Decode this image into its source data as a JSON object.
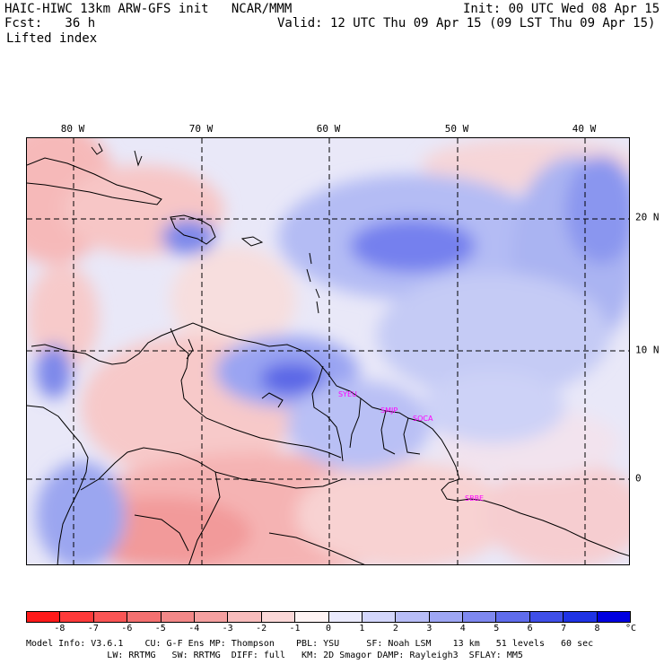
{
  "header": {
    "title": "HAIC-HIWC 13km ARW-GFS init   NCAR/MMM",
    "init": "Init: 00 UTC Wed 08 Apr 15",
    "fcst": "Fcst:   36 h",
    "valid": "Valid: 12 UTC Thu 09 Apr 15 (09 LST Thu 09 Apr 15)",
    "field": "Lifted index"
  },
  "map": {
    "lon_labels": [
      "80 W",
      "70 W",
      "60 W",
      "50 W",
      "40 W"
    ],
    "lat_labels": [
      "20 N",
      "10 N",
      "0"
    ],
    "stations": [
      "SYEU",
      "SMJP",
      "SOCA",
      "SBBE"
    ]
  },
  "colorbar": {
    "labels": [
      "-8",
      "-7",
      "-6",
      "-5",
      "-4",
      "-3",
      "-2",
      "-1",
      "0",
      "1",
      "2",
      "3",
      "4",
      "5",
      "6",
      "7",
      "8",
      "°C"
    ],
    "colors": [
      "#ff1a1a",
      "#ff3a3a",
      "#fa5555",
      "#f47070",
      "#f38888",
      "#f5a0a0",
      "#f8bcbc",
      "#fbd8d8",
      "#fff4f4",
      "#eaeafd",
      "#d3d6fb",
      "#b8bdf7",
      "#9ea6f4",
      "#7e88f0",
      "#5f6cec",
      "#3f4fe8",
      "#1f33e5",
      "#0000e0"
    ]
  },
  "footer": {
    "line1": "Model Info: V3.6.1    CU: G-F Ens MP: Thompson    PBL: YSU     SF: Noah LSM    13 km   51 levels   60 sec",
    "line2": "               LW: RRTMG   SW: RRTMG  DIFF: full   KM: 2D Smagor DAMP: Rayleigh3  SFLAY: MM5"
  }
}
